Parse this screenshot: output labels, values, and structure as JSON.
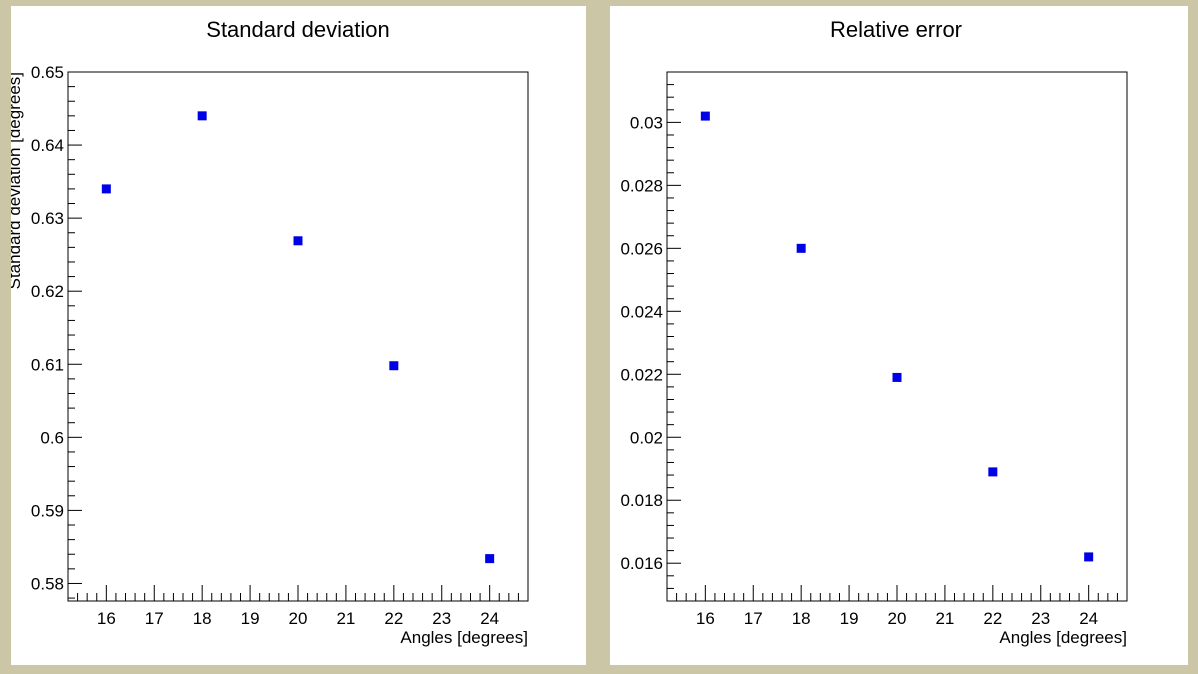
{
  "colors": {
    "marker": "#0000e6",
    "frame": "#cbc6a6",
    "panel": "#ffffff"
  },
  "chart_data": [
    {
      "type": "scatter",
      "title": "Standard deviation",
      "xlabel": "Angles [degrees]",
      "ylabel": "Standard deviation [degrees]",
      "xlim": [
        15.2,
        24.8
      ],
      "ylim": [
        0.5776,
        0.65
      ],
      "x_ticks": [
        16,
        17,
        18,
        19,
        20,
        21,
        22,
        23,
        24
      ],
      "y_ticks": [
        0.58,
        0.59,
        0.6,
        0.61,
        0.62,
        0.63,
        0.64,
        0.65
      ],
      "x": [
        16,
        18,
        20,
        22,
        24
      ],
      "values": [
        0.634,
        0.644,
        0.6269,
        0.6098,
        0.5834
      ]
    },
    {
      "type": "scatter",
      "title": "Relative error",
      "xlabel": "Angles [degrees]",
      "ylabel": "",
      "xlim": [
        15.2,
        24.8
      ],
      "ylim": [
        0.0148,
        0.0316
      ],
      "x_ticks": [
        16,
        17,
        18,
        19,
        20,
        21,
        22,
        23,
        24
      ],
      "y_ticks": [
        0.016,
        0.018,
        0.02,
        0.022,
        0.024,
        0.026,
        0.028,
        0.03
      ],
      "x": [
        16,
        18,
        20,
        22,
        24
      ],
      "values": [
        0.0302,
        0.026,
        0.0219,
        0.0189,
        0.0162
      ]
    }
  ]
}
